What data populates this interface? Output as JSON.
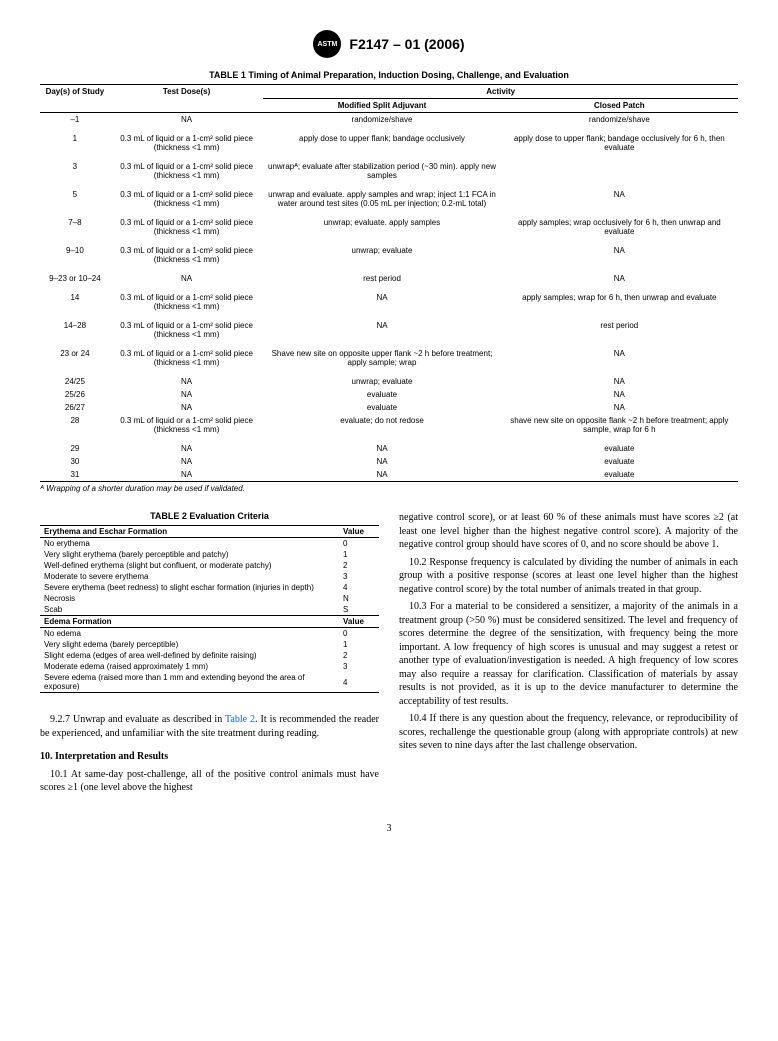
{
  "header": {
    "logo_text": "ASTM",
    "doc_code": "F2147 – 01 (2006)"
  },
  "table1": {
    "title": "TABLE 1  Timing of Animal Preparation, Induction Dosing, Challenge, and Evaluation",
    "col_day": "Day(s) of Study",
    "col_dose": "Test Dose(s)",
    "col_activity": "Activity",
    "col_msa": "Modified Split Adjuvant",
    "col_cp": "Closed Patch",
    "rows": [
      {
        "day": "–1",
        "dose": "NA",
        "msa": "randomize/shave",
        "cp": "randomize/shave"
      },
      {
        "day": "1",
        "dose": "0.3 mL of liquid or a 1-cm² solid piece (thickness <1 mm)",
        "msa": "apply dose to upper flank; bandage occlusively",
        "cp": "apply dose to upper flank; bandage occlusively for 6 h, then evaluate"
      },
      {
        "day": "3",
        "dose": "0.3 mL of liquid or a 1-cm² solid piece (thickness <1 mm)",
        "msa": "unwrapᴬ; evaluate after stabilization period (~30 min). apply new samples",
        "cp": ""
      },
      {
        "day": "5",
        "dose": "0.3 mL of liquid or a 1-cm² solid piece (thickness <1 mm)",
        "msa": "unwrap and evaluate. apply samples and wrap; inject 1:1 FCA in water around test sites (0.05 mL per injection; 0.2-mL total)",
        "cp": "NA"
      },
      {
        "day": "7–8",
        "dose": "0.3 mL of liquid or a 1-cm² solid piece (thickness <1 mm)",
        "msa": "unwrap; evaluate. apply samples",
        "cp": "apply samples; wrap occlusively for 6 h, then unwrap and evaluate"
      },
      {
        "day": "9–10",
        "dose": "0.3 mL of liquid or a 1-cm² solid piece (thickness <1 mm)",
        "msa": "unwrap; evaluate",
        "cp": "NA"
      },
      {
        "day": "9–23 or 10–24",
        "dose": "NA",
        "msa": "rest period",
        "cp": "NA"
      },
      {
        "day": "14",
        "dose": "0.3 mL of liquid or a 1-cm² solid piece (thickness <1 mm)",
        "msa": "NA",
        "cp": "apply samples; wrap for 6 h, then unwrap and evaluate"
      },
      {
        "day": "14–28",
        "dose": "0.3 mL of liquid or a 1-cm² solid piece (thickness <1 mm)",
        "msa": "NA",
        "cp": "rest period"
      },
      {
        "day": "23 or 24",
        "dose": "0.3 mL of liquid or a 1-cm² solid piece (thickness <1 mm)",
        "msa": "Shave new site on opposite upper flank ~2 h before treatment; apply sample; wrap",
        "cp": "NA"
      },
      {
        "day": "24/25",
        "dose": "NA",
        "msa": "unwrap; evaluate",
        "cp": "NA"
      },
      {
        "day": "25/26",
        "dose": "NA",
        "msa": "evaluate",
        "cp": "NA"
      },
      {
        "day": "26/27",
        "dose": "NA",
        "msa": "evaluate",
        "cp": "NA"
      },
      {
        "day": "28",
        "dose": "0.3 mL of liquid or a 1-cm² solid piece (thickness <1 mm)",
        "msa": "evaluate; do not redose",
        "cp": "shave new site on opposite flank ~2 h before treatment; apply sample, wrap for 6 h"
      },
      {
        "day": "29",
        "dose": "NA",
        "msa": "NA",
        "cp": "evaluate"
      },
      {
        "day": "30",
        "dose": "NA",
        "msa": "NA",
        "cp": "evaluate"
      },
      {
        "day": "31",
        "dose": "NA",
        "msa": "NA",
        "cp": "evaluate"
      }
    ],
    "footnote": "ᴬ Wrapping of a shorter duration may be used if validated."
  },
  "table2": {
    "title": "TABLE 2  Evaluation Criteria",
    "hdr_erythema": "Erythema and Eschar Formation",
    "hdr_edema": "Edema Formation",
    "hdr_value": "Value",
    "erythema_rows": [
      {
        "label": "No erythema",
        "value": "0"
      },
      {
        "label": "Very slight erythema (barely perceptible and patchy)",
        "value": "1"
      },
      {
        "label": "Well-defined erythema (slight but confluent, or moderate patchy)",
        "value": "2"
      },
      {
        "label": "Moderate to severe erythema",
        "value": "3"
      },
      {
        "label": "Severe erythema (beet redness) to slight eschar formation (injuries in depth)",
        "value": "4"
      },
      {
        "label": "Necrosis",
        "value": "N"
      },
      {
        "label": "Scab",
        "value": "S"
      }
    ],
    "edema_rows": [
      {
        "label": "No edema",
        "value": "0"
      },
      {
        "label": "Very slight edema (barely perceptible)",
        "value": "1"
      },
      {
        "label": "Slight edema (edges of area well-defined by definite raising)",
        "value": "2"
      },
      {
        "label": "Moderate edema (raised approximately 1 mm)",
        "value": "3"
      },
      {
        "label": "Severe edema (raised more than 1 mm and extending beyond the area of exposure)",
        "value": "4"
      }
    ]
  },
  "body": {
    "p927a": "9.2.7 Unwrap and evaluate as described in ",
    "p927_link": "Table 2",
    "p927b": ". It is recommended the reader be experienced, and unfamiliar with the site treatment during reading.",
    "sect10": "10.  Interpretation and Results",
    "p101": "10.1 At same-day post-challenge, all of the positive control animals must have scores ≥1 (one level above the highest",
    "p101_cont": "negative control score), or at least 60 % of these animals must have scores ≥2 (at least one level higher than the highest negative control score). A majority of the negative control group should have scores of 0, and no score should be above 1.",
    "p102": "10.2 Response frequency is calculated by dividing the number of animals in each group with a positive response (scores at least one level higher than the highest negative control score) by the total number of animals treated in that group.",
    "p103": "10.3 For a material to be considered a sensitizer, a majority of the animals in a treatment group (>50 %) must be considered sensitized. The level and frequency of scores determine the degree of the sensitization, with frequency being the more important. A low frequency of high scores is unusual and may suggest a retest or another type of evaluation/investigation is needed. A high frequency of low scores may also require a reassay for clarification. Classification of materials by assay results is not provided, as it is up to the device manufacturer to determine the acceptability of test results.",
    "p104": "10.4 If there is any question about the frequency, relevance, or reproducibility of scores, rechallenge the questionable group (along with appropriate controls) at new sites seven to nine days after the last challenge observation."
  },
  "page_number": "3"
}
